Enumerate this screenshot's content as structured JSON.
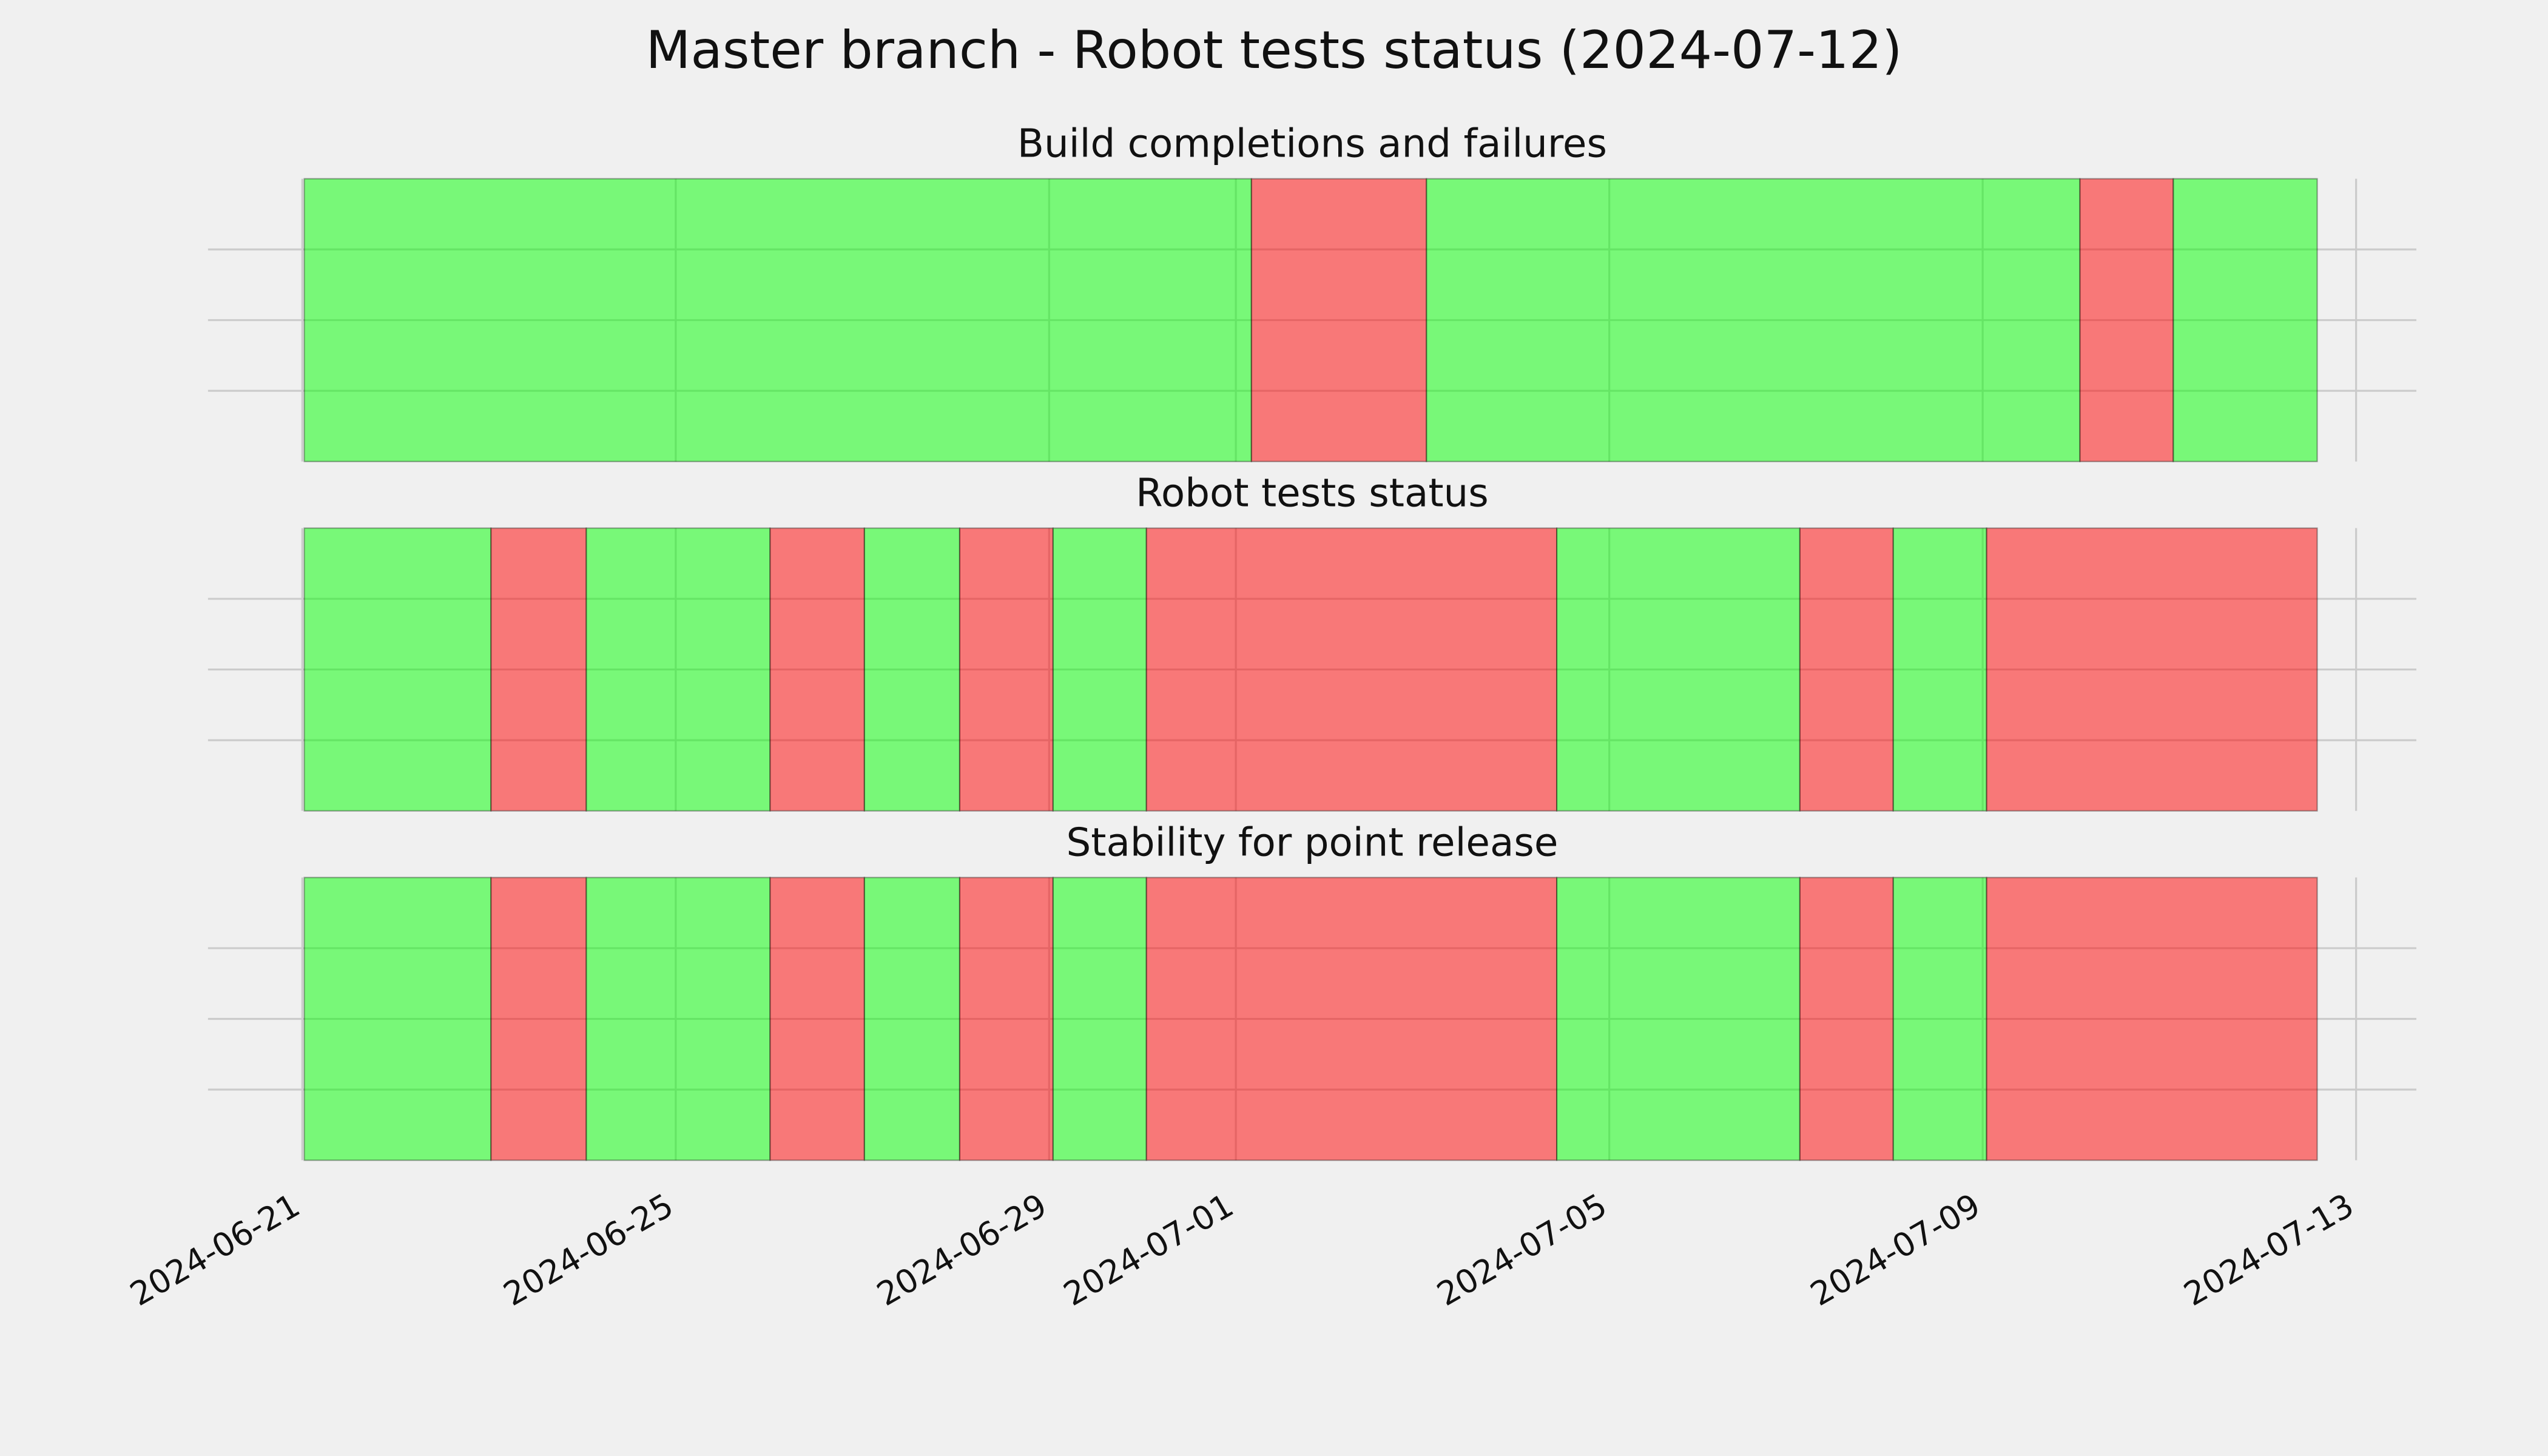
{
  "title": "Master branch - Robot tests status (2024-07-12)",
  "chart_data": [
    {
      "type": "timeline",
      "title": "Build completions and failures",
      "xlim": [
        "2024-06-19T23:45",
        "2024-07-13T15:30"
      ],
      "xticks": [
        "2024-06-21",
        "2024-06-25",
        "2024-06-29",
        "2024-07-01",
        "2024-07-05",
        "2024-07-09",
        "2024-07-13"
      ],
      "ylim": [
        0,
        1
      ],
      "yticks": [
        0.25,
        0.5,
        0.75
      ],
      "grid": true,
      "bins": [
        "2024-06-21T00:30",
        "2024-07-01T04:00",
        "2024-07-03T01:00",
        "2024-07-10T01:00",
        "2024-07-11T01:00",
        "2024-07-12T14:00"
      ],
      "colors": [
        "#00ff00",
        "#ff0000",
        "#00ff00",
        "#ff0000",
        "#00ff00"
      ]
    },
    {
      "type": "timeline",
      "title": "Robot tests status",
      "xlim": [
        "2024-06-19T23:45",
        "2024-07-13T15:30"
      ],
      "xticks": [
        "2024-06-21",
        "2024-06-25",
        "2024-06-29",
        "2024-07-01",
        "2024-07-05",
        "2024-07-09",
        "2024-07-13"
      ],
      "ylim": [
        0,
        1
      ],
      "yticks": [
        0.25,
        0.5,
        0.75
      ],
      "grid": true,
      "bins": [
        "2024-06-21T00:30",
        "2024-06-23T00:30",
        "2024-06-24T01:00",
        "2024-06-26T00:15",
        "2024-06-27T00:30",
        "2024-06-28T01:00",
        "2024-06-29T01:00",
        "2024-06-30T01:00",
        "2024-07-04T10:30",
        "2024-07-07T01:00",
        "2024-07-08T01:00",
        "2024-07-09T01:00",
        "2024-07-12T14:00"
      ],
      "colors": [
        "#00ff00",
        "#ff0000",
        "#00ff00",
        "#ff0000",
        "#00ff00",
        "#ff0000",
        "#00ff00",
        "#ff0000",
        "#00ff00",
        "#ff0000",
        "#00ff00",
        "#ff0000"
      ]
    },
    {
      "type": "timeline",
      "title": "Stability for point release",
      "xlim": [
        "2024-06-19T23:45",
        "2024-07-13T15:30"
      ],
      "xticks": [
        "2024-06-21",
        "2024-06-25",
        "2024-06-29",
        "2024-07-01",
        "2024-07-05",
        "2024-07-09",
        "2024-07-13"
      ],
      "ylim": [
        0,
        1
      ],
      "yticks": [
        0.25,
        0.5,
        0.75
      ],
      "grid": true,
      "bins": [
        "2024-06-21T00:30",
        "2024-06-23T00:30",
        "2024-06-24T01:00",
        "2024-06-26T00:15",
        "2024-06-27T00:30",
        "2024-06-28T01:00",
        "2024-06-29T01:00",
        "2024-06-30T01:00",
        "2024-07-04T10:30",
        "2024-07-07T01:00",
        "2024-07-08T01:00",
        "2024-07-09T01:00",
        "2024-07-12T14:00"
      ],
      "colors": [
        "#00ff00",
        "#ff0000",
        "#00ff00",
        "#ff0000",
        "#00ff00",
        "#ff0000",
        "#00ff00",
        "#ff0000",
        "#00ff00",
        "#ff0000",
        "#00ff00",
        "#ff0000"
      ]
    }
  ]
}
